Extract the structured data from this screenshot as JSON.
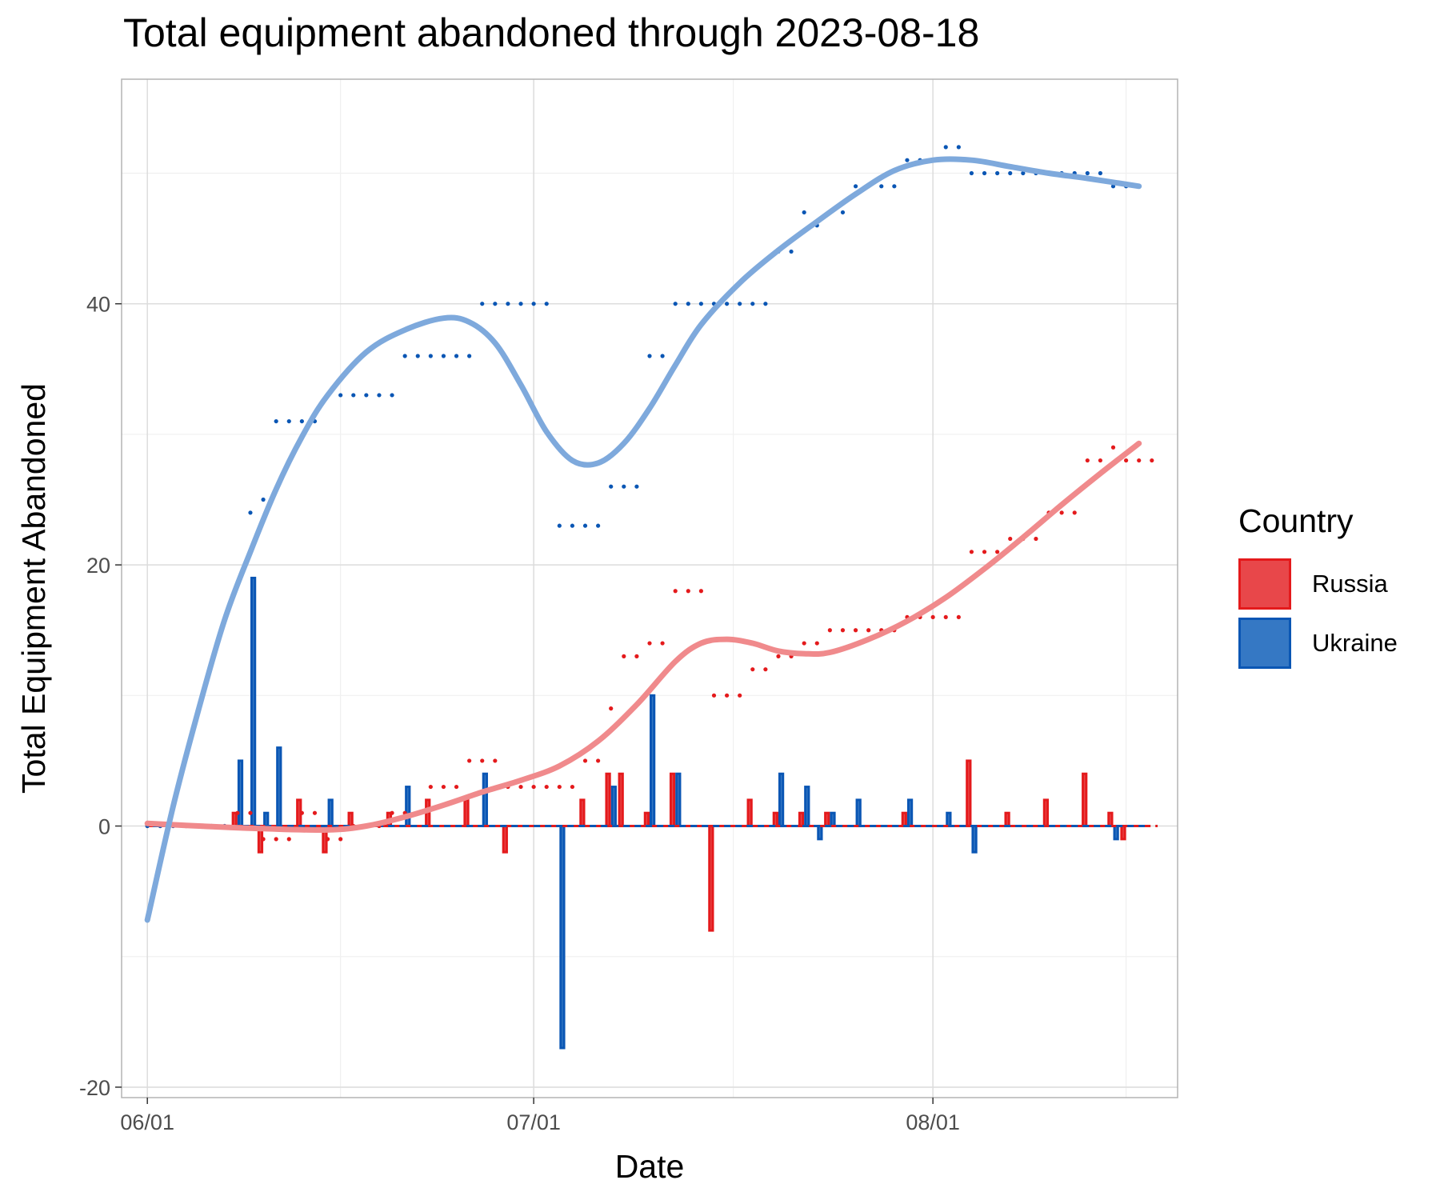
{
  "chart_data": {
    "type": "bar",
    "title": "Total equipment abandoned through 2023-08-18",
    "xlabel": "Date",
    "ylabel": "Total Equipment Abandoned",
    "x_range": [
      "2023-05-30",
      "2023-08-20"
    ],
    "ylim": [
      -20.8,
      57.2
    ],
    "y_ticks": [
      -20,
      0,
      20,
      40
    ],
    "x_ticks": [
      {
        "date": "2023-06-01",
        "label": "06/01"
      },
      {
        "date": "2023-07-01",
        "label": "07/01"
      },
      {
        "date": "2023-08-01",
        "label": "08/01"
      }
    ],
    "grid": true,
    "legend": {
      "title": "Country",
      "position": "right"
    },
    "start_date": "2023-06-01",
    "series": [
      {
        "name": "Russia",
        "color": "#e41a1c",
        "fill": "#e8474a",
        "smooth_color": "#f08a8c",
        "daily_changes": [
          [
            "2023-06-08",
            1
          ],
          [
            "2023-06-09",
            0
          ],
          [
            "2023-06-10",
            -2
          ],
          [
            "2023-06-13",
            2
          ],
          [
            "2023-06-15",
            -2
          ],
          [
            "2023-06-17",
            1
          ],
          [
            "2023-06-20",
            1
          ],
          [
            "2023-06-23",
            2
          ],
          [
            "2023-06-26",
            2
          ],
          [
            "2023-06-29",
            -2
          ],
          [
            "2023-07-05",
            2
          ],
          [
            "2023-07-07",
            4
          ],
          [
            "2023-07-08",
            4
          ],
          [
            "2023-07-10",
            1
          ],
          [
            "2023-07-12",
            4
          ],
          [
            "2023-07-15",
            -8
          ],
          [
            "2023-07-18",
            2
          ],
          [
            "2023-07-20",
            1
          ],
          [
            "2023-07-22",
            1
          ],
          [
            "2023-07-24",
            1
          ],
          [
            "2023-07-30",
            1
          ],
          [
            "2023-08-04",
            5
          ],
          [
            "2023-08-07",
            1
          ],
          [
            "2023-08-10",
            2
          ],
          [
            "2023-08-13",
            4
          ],
          [
            "2023-08-15",
            1
          ],
          [
            "2023-08-16",
            -1
          ]
        ],
        "cumulative": [
          [
            "2023-06-01",
            0
          ],
          [
            "2023-06-02",
            0
          ],
          [
            "2023-06-03",
            0
          ],
          [
            "2023-06-04",
            0
          ],
          [
            "2023-06-05",
            0
          ],
          [
            "2023-06-06",
            0
          ],
          [
            "2023-06-07",
            0
          ],
          [
            "2023-06-08",
            1
          ],
          [
            "2023-06-09",
            1
          ],
          [
            "2023-06-10",
            -1
          ],
          [
            "2023-06-11",
            -1
          ],
          [
            "2023-06-12",
            -1
          ],
          [
            "2023-06-13",
            1
          ],
          [
            "2023-06-14",
            1
          ],
          [
            "2023-06-15",
            -1
          ],
          [
            "2023-06-16",
            -1
          ],
          [
            "2023-06-17",
            0
          ],
          [
            "2023-06-18",
            0
          ],
          [
            "2023-06-19",
            0
          ],
          [
            "2023-06-20",
            1
          ],
          [
            "2023-06-21",
            1
          ],
          [
            "2023-06-22",
            1
          ],
          [
            "2023-06-23",
            3
          ],
          [
            "2023-06-24",
            3
          ],
          [
            "2023-06-25",
            3
          ],
          [
            "2023-06-26",
            5
          ],
          [
            "2023-06-27",
            5
          ],
          [
            "2023-06-28",
            5
          ],
          [
            "2023-06-29",
            3
          ],
          [
            "2023-06-30",
            3
          ],
          [
            "2023-07-01",
            3
          ],
          [
            "2023-07-02",
            3
          ],
          [
            "2023-07-03",
            3
          ],
          [
            "2023-07-04",
            3
          ],
          [
            "2023-07-05",
            5
          ],
          [
            "2023-07-06",
            5
          ],
          [
            "2023-07-07",
            9
          ],
          [
            "2023-07-08",
            13
          ],
          [
            "2023-07-09",
            13
          ],
          [
            "2023-07-10",
            14
          ],
          [
            "2023-07-11",
            14
          ],
          [
            "2023-07-12",
            18
          ],
          [
            "2023-07-13",
            18
          ],
          [
            "2023-07-14",
            18
          ],
          [
            "2023-07-15",
            10
          ],
          [
            "2023-07-16",
            10
          ],
          [
            "2023-07-17",
            10
          ],
          [
            "2023-07-18",
            12
          ],
          [
            "2023-07-19",
            12
          ],
          [
            "2023-07-20",
            13
          ],
          [
            "2023-07-21",
            13
          ],
          [
            "2023-07-22",
            14
          ],
          [
            "2023-07-23",
            14
          ],
          [
            "2023-07-24",
            15
          ],
          [
            "2023-07-25",
            15
          ],
          [
            "2023-07-26",
            15
          ],
          [
            "2023-07-27",
            15
          ],
          [
            "2023-07-28",
            15
          ],
          [
            "2023-07-29",
            15
          ],
          [
            "2023-07-30",
            16
          ],
          [
            "2023-07-31",
            16
          ],
          [
            "2023-08-01",
            16
          ],
          [
            "2023-08-02",
            16
          ],
          [
            "2023-08-03",
            16
          ],
          [
            "2023-08-04",
            21
          ],
          [
            "2023-08-05",
            21
          ],
          [
            "2023-08-06",
            21
          ],
          [
            "2023-08-07",
            22
          ],
          [
            "2023-08-08",
            22
          ],
          [
            "2023-08-09",
            22
          ],
          [
            "2023-08-10",
            24
          ],
          [
            "2023-08-11",
            24
          ],
          [
            "2023-08-12",
            24
          ],
          [
            "2023-08-13",
            28
          ],
          [
            "2023-08-14",
            28
          ],
          [
            "2023-08-15",
            29
          ],
          [
            "2023-08-16",
            28
          ],
          [
            "2023-08-17",
            28
          ],
          [
            "2023-08-18",
            28
          ]
        ],
        "smooth": [
          [
            "2023-06-01",
            0.2
          ],
          [
            "2023-06-05",
            0.0
          ],
          [
            "2023-06-10",
            -0.2
          ],
          [
            "2023-06-15",
            -0.3
          ],
          [
            "2023-06-18",
            0.0
          ],
          [
            "2023-06-21",
            0.7
          ],
          [
            "2023-06-24",
            1.6
          ],
          [
            "2023-06-27",
            2.6
          ],
          [
            "2023-06-30",
            3.5
          ],
          [
            "2023-07-03",
            4.6
          ],
          [
            "2023-07-06",
            6.5
          ],
          [
            "2023-07-09",
            9.3
          ],
          [
            "2023-07-12",
            12.6
          ],
          [
            "2023-07-14",
            14.0
          ],
          [
            "2023-07-16",
            14.3
          ],
          [
            "2023-07-18",
            14.0
          ],
          [
            "2023-07-20",
            13.4
          ],
          [
            "2023-07-22",
            13.2
          ],
          [
            "2023-07-24",
            13.3
          ],
          [
            "2023-07-27",
            14.3
          ],
          [
            "2023-07-30",
            15.7
          ],
          [
            "2023-08-02",
            17.5
          ],
          [
            "2023-08-05",
            19.7
          ],
          [
            "2023-08-08",
            22.1
          ],
          [
            "2023-08-11",
            24.6
          ],
          [
            "2023-08-14",
            27.0
          ],
          [
            "2023-08-17",
            29.3
          ]
        ]
      },
      {
        "name": "Ukraine",
        "color": "#0a56b4",
        "fill": "#3578c4",
        "smooth_color": "#7ea9dc",
        "daily_changes": [
          [
            "2023-06-08",
            5
          ],
          [
            "2023-06-09",
            19
          ],
          [
            "2023-06-10",
            1
          ],
          [
            "2023-06-11",
            6
          ],
          [
            "2023-06-15",
            2
          ],
          [
            "2023-06-21",
            3
          ],
          [
            "2023-06-27",
            4
          ],
          [
            "2023-07-03",
            -17
          ],
          [
            "2023-07-07",
            3
          ],
          [
            "2023-07-10",
            10
          ],
          [
            "2023-07-12",
            4
          ],
          [
            "2023-07-20",
            4
          ],
          [
            "2023-07-22",
            3
          ],
          [
            "2023-07-23",
            -1
          ],
          [
            "2023-07-24",
            1
          ],
          [
            "2023-07-26",
            2
          ],
          [
            "2023-07-30",
            2
          ],
          [
            "2023-08-02",
            1
          ],
          [
            "2023-08-04",
            -2
          ],
          [
            "2023-08-15",
            -1
          ]
        ],
        "cumulative": [
          [
            "2023-06-01",
            0
          ],
          [
            "2023-06-02",
            0
          ],
          [
            "2023-06-03",
            0
          ],
          [
            "2023-06-04",
            0
          ],
          [
            "2023-06-05",
            0
          ],
          [
            "2023-06-06",
            0
          ],
          [
            "2023-06-07",
            0
          ],
          [
            "2023-06-09",
            24
          ],
          [
            "2023-06-10",
            25
          ],
          [
            "2023-06-11",
            31
          ],
          [
            "2023-06-12",
            31
          ],
          [
            "2023-06-13",
            31
          ],
          [
            "2023-06-14",
            31
          ],
          [
            "2023-06-15",
            33
          ],
          [
            "2023-06-16",
            33
          ],
          [
            "2023-06-17",
            33
          ],
          [
            "2023-06-18",
            33
          ],
          [
            "2023-06-19",
            33
          ],
          [
            "2023-06-20",
            33
          ],
          [
            "2023-06-21",
            36
          ],
          [
            "2023-06-22",
            36
          ],
          [
            "2023-06-23",
            36
          ],
          [
            "2023-06-24",
            36
          ],
          [
            "2023-06-25",
            36
          ],
          [
            "2023-06-26",
            36
          ],
          [
            "2023-06-27",
            40
          ],
          [
            "2023-06-28",
            40
          ],
          [
            "2023-06-29",
            40
          ],
          [
            "2023-06-30",
            40
          ],
          [
            "2023-07-01",
            40
          ],
          [
            "2023-07-02",
            40
          ],
          [
            "2023-07-03",
            23
          ],
          [
            "2023-07-04",
            23
          ],
          [
            "2023-07-05",
            23
          ],
          [
            "2023-07-06",
            23
          ],
          [
            "2023-07-07",
            26
          ],
          [
            "2023-07-08",
            26
          ],
          [
            "2023-07-09",
            26
          ],
          [
            "2023-07-10",
            36
          ],
          [
            "2023-07-11",
            36
          ],
          [
            "2023-07-12",
            40
          ],
          [
            "2023-07-13",
            40
          ],
          [
            "2023-07-14",
            40
          ],
          [
            "2023-07-15",
            40
          ],
          [
            "2023-07-16",
            40
          ],
          [
            "2023-07-17",
            40
          ],
          [
            "2023-07-18",
            40
          ],
          [
            "2023-07-19",
            40
          ],
          [
            "2023-07-20",
            44
          ],
          [
            "2023-07-21",
            44
          ],
          [
            "2023-07-22",
            47
          ],
          [
            "2023-07-23",
            46
          ],
          [
            "2023-07-24",
            47
          ],
          [
            "2023-07-25",
            47
          ],
          [
            "2023-07-26",
            49
          ],
          [
            "2023-07-27",
            49
          ],
          [
            "2023-07-28",
            49
          ],
          [
            "2023-07-29",
            49
          ],
          [
            "2023-07-30",
            51
          ],
          [
            "2023-07-31",
            51
          ],
          [
            "2023-08-01",
            51
          ],
          [
            "2023-08-02",
            52
          ],
          [
            "2023-08-03",
            52
          ],
          [
            "2023-08-04",
            50
          ],
          [
            "2023-08-05",
            50
          ],
          [
            "2023-08-06",
            50
          ],
          [
            "2023-08-07",
            50
          ],
          [
            "2023-08-08",
            50
          ],
          [
            "2023-08-09",
            50
          ],
          [
            "2023-08-10",
            50
          ],
          [
            "2023-08-11",
            50
          ],
          [
            "2023-08-12",
            50
          ],
          [
            "2023-08-13",
            50
          ],
          [
            "2023-08-14",
            50
          ],
          [
            "2023-08-15",
            49
          ],
          [
            "2023-08-16",
            49
          ],
          [
            "2023-08-17",
            49
          ]
        ],
        "smooth": [
          [
            "2023-06-01",
            -7.2
          ],
          [
            "2023-06-03",
            1.5
          ],
          [
            "2023-06-05",
            9.0
          ],
          [
            "2023-06-07",
            15.8
          ],
          [
            "2023-06-09",
            21.0
          ],
          [
            "2023-06-11",
            25.8
          ],
          [
            "2023-06-13",
            29.8
          ],
          [
            "2023-06-15",
            33.0
          ],
          [
            "2023-06-18",
            36.3
          ],
          [
            "2023-06-21",
            38.0
          ],
          [
            "2023-06-24",
            38.9
          ],
          [
            "2023-06-26",
            38.6
          ],
          [
            "2023-06-28",
            37.0
          ],
          [
            "2023-06-30",
            33.8
          ],
          [
            "2023-07-02",
            30.2
          ],
          [
            "2023-07-04",
            28.0
          ],
          [
            "2023-07-06",
            27.8
          ],
          [
            "2023-07-08",
            29.3
          ],
          [
            "2023-07-10",
            32.0
          ],
          [
            "2023-07-12",
            35.3
          ],
          [
            "2023-07-14",
            38.4
          ],
          [
            "2023-07-17",
            41.6
          ],
          [
            "2023-07-20",
            44.1
          ],
          [
            "2023-07-23",
            46.3
          ],
          [
            "2023-07-26",
            48.4
          ],
          [
            "2023-07-29",
            50.2
          ],
          [
            "2023-08-01",
            51.0
          ],
          [
            "2023-08-04",
            51.0
          ],
          [
            "2023-08-07",
            50.5
          ],
          [
            "2023-08-10",
            50.0
          ],
          [
            "2023-08-13",
            49.6
          ],
          [
            "2023-08-17",
            49.0
          ]
        ]
      }
    ]
  }
}
